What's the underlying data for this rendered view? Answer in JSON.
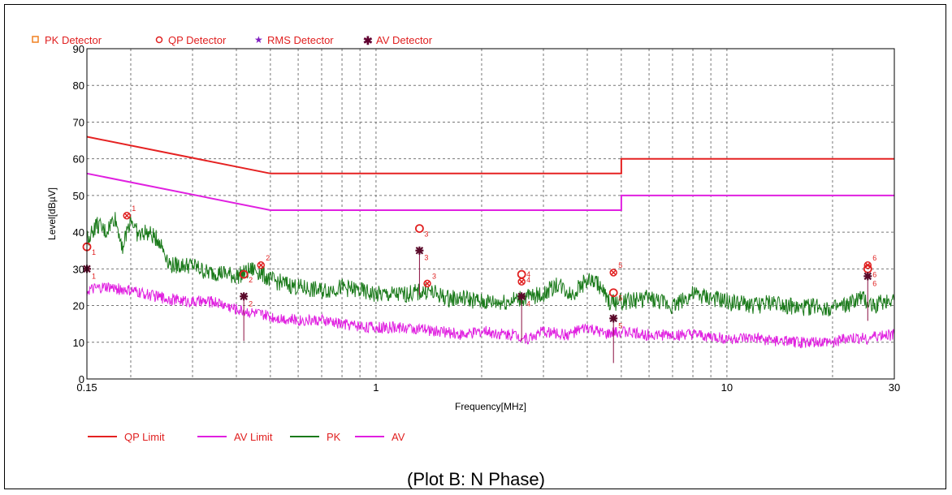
{
  "caption": "(Plot B: N Phase)",
  "chart_data": {
    "type": "line",
    "xlabel": "Frequency[MHz]",
    "ylabel": "Level[dBµV]",
    "x_scale": "log",
    "xlim": [
      0.15,
      30
    ],
    "ylim": [
      0,
      90
    ],
    "grid": true,
    "x_tick_labels": [
      {
        "value": 0.15,
        "label": "0.15"
      },
      {
        "value": 1,
        "label": "1"
      },
      {
        "value": 10,
        "label": "10"
      },
      {
        "value": 30,
        "label": "30"
      }
    ],
    "y_tick_labels": [
      {
        "value": 0,
        "label": "0"
      },
      {
        "value": 10,
        "label": "10"
      },
      {
        "value": 20,
        "label": "20"
      },
      {
        "value": 30,
        "label": "30"
      },
      {
        "value": 40,
        "label": "40"
      },
      {
        "value": 50,
        "label": "50"
      },
      {
        "value": 60,
        "label": "60"
      },
      {
        "value": 70,
        "label": "70"
      },
      {
        "value": 80,
        "label": "80"
      },
      {
        "value": 90,
        "label": "90"
      }
    ],
    "detector_legend": [
      {
        "label": "PK Detector",
        "symbol": "square",
        "color": "#f08020"
      },
      {
        "label": "QP Detector",
        "symbol": "circle",
        "color": "#e02020"
      },
      {
        "label": "RMS Detector",
        "symbol": "star",
        "color": "#8020c0"
      },
      {
        "label": "AV Detector",
        "symbol": "asterisk",
        "color": "#600030"
      }
    ],
    "series": [
      {
        "name": "QP Limit",
        "color": "#e52222",
        "points": [
          [
            0.15,
            66
          ],
          [
            0.5,
            56
          ],
          [
            5,
            56
          ],
          [
            5,
            60
          ],
          [
            30,
            60
          ]
        ]
      },
      {
        "name": "AV Limit",
        "color": "#e020e0",
        "points": [
          [
            0.15,
            56
          ],
          [
            0.5,
            46
          ],
          [
            5,
            46
          ],
          [
            5,
            50
          ],
          [
            30,
            50
          ]
        ]
      },
      {
        "name": "PK",
        "color": "#1a7a1a",
        "points": [
          [
            0.15,
            38
          ],
          [
            0.16,
            42
          ],
          [
            0.17,
            40
          ],
          [
            0.18,
            44
          ],
          [
            0.19,
            36
          ],
          [
            0.2,
            44
          ],
          [
            0.21,
            39
          ],
          [
            0.22,
            40
          ],
          [
            0.24,
            38
          ],
          [
            0.26,
            31
          ],
          [
            0.3,
            31
          ],
          [
            0.33,
            29
          ],
          [
            0.36,
            29
          ],
          [
            0.4,
            28
          ],
          [
            0.45,
            30
          ],
          [
            0.5,
            27
          ],
          [
            0.6,
            25
          ],
          [
            0.7,
            24
          ],
          [
            0.8,
            25
          ],
          [
            0.9,
            24
          ],
          [
            1.0,
            23
          ],
          [
            1.2,
            23
          ],
          [
            1.4,
            24
          ],
          [
            1.6,
            22
          ],
          [
            1.8,
            22
          ],
          [
            2.0,
            21
          ],
          [
            2.3,
            21
          ],
          [
            2.6,
            22
          ],
          [
            3.0,
            23
          ],
          [
            3.3,
            26
          ],
          [
            3.6,
            23
          ],
          [
            4.0,
            27
          ],
          [
            4.3,
            26
          ],
          [
            4.6,
            21
          ],
          [
            5.0,
            21
          ],
          [
            6,
            22
          ],
          [
            7,
            20
          ],
          [
            8,
            23
          ],
          [
            9,
            22
          ],
          [
            10,
            21
          ],
          [
            12,
            20
          ],
          [
            14,
            21
          ],
          [
            16,
            19
          ],
          [
            18,
            20
          ],
          [
            20,
            19
          ],
          [
            22,
            20
          ],
          [
            24,
            22
          ],
          [
            26,
            20
          ],
          [
            28,
            21
          ],
          [
            30,
            22
          ]
        ]
      },
      {
        "name": "AV",
        "color": "#e020e0",
        "points": [
          [
            0.15,
            24
          ],
          [
            0.17,
            25
          ],
          [
            0.2,
            24
          ],
          [
            0.25,
            22
          ],
          [
            0.3,
            21
          ],
          [
            0.35,
            21
          ],
          [
            0.4,
            19
          ],
          [
            0.5,
            17
          ],
          [
            0.6,
            16
          ],
          [
            0.7,
            16
          ],
          [
            0.8,
            15
          ],
          [
            1.0,
            14
          ],
          [
            1.2,
            14
          ],
          [
            1.5,
            13
          ],
          [
            1.8,
            12
          ],
          [
            2.0,
            13
          ],
          [
            2.5,
            12
          ],
          [
            2.7,
            11
          ],
          [
            3.0,
            13
          ],
          [
            3.5,
            12
          ],
          [
            4.0,
            14
          ],
          [
            4.5,
            12
          ],
          [
            5,
            13
          ],
          [
            6,
            12
          ],
          [
            7,
            12
          ],
          [
            8,
            12
          ],
          [
            10,
            11
          ],
          [
            12,
            11
          ],
          [
            15,
            10
          ],
          [
            18,
            10
          ],
          [
            20,
            10
          ],
          [
            22,
            11
          ],
          [
            25,
            11
          ],
          [
            28,
            12
          ],
          [
            30,
            12
          ]
        ]
      }
    ],
    "markers": [
      {
        "label": "1",
        "freq": 0.15,
        "qp": 36,
        "av": 30
      },
      {
        "label": "1",
        "freq": 0.195,
        "pk": 44.5
      },
      {
        "label": "2",
        "freq": 0.42,
        "qp": 28.5,
        "av": 22.5
      },
      {
        "label": "2",
        "freq": 0.47,
        "pk": 31
      },
      {
        "label": "3",
        "freq": 1.33,
        "qp": 41,
        "av": 35
      },
      {
        "label": "3",
        "freq": 1.4,
        "pk": 26
      },
      {
        "label": "4",
        "freq": 2.6,
        "qp": 28.5,
        "pk": 26.5,
        "av": 22.5
      },
      {
        "label": "5",
        "freq": 4.75,
        "qp": 23.5,
        "pk": 29,
        "av": 16.5
      },
      {
        "label": "6",
        "freq": 25.2,
        "qp": 30,
        "pk": 31,
        "av": 28
      }
    ]
  },
  "bottom_legend": [
    "QP Limit",
    "AV Limit",
    "PK",
    "AV"
  ],
  "bottom_legend_colors": [
    "#e52222",
    "#e020e0",
    "#1a7a1a",
    "#e020e0"
  ]
}
